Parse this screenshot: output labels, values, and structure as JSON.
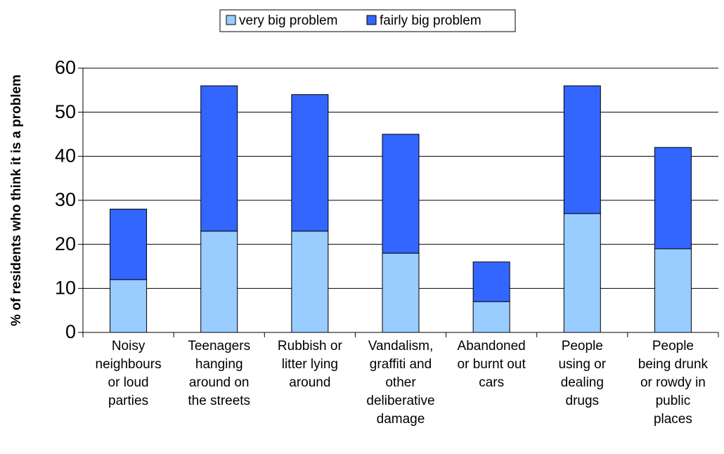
{
  "chart_data": {
    "type": "stacked_bar",
    "y_label": "% of residents who think it is a problem",
    "categories": [
      "Noisy\nneighbours\nor loud\nparties",
      "Teenagers\nhanging\naround on\nthe streets",
      "Rubbish or\nlitter lying\naround",
      "Vandalism,\ngraffiti and\nother\ndeliberative\ndamage",
      "Abandoned\nor burnt out\ncars",
      "People\nusing or\ndealing\ndrugs",
      "People\nbeing drunk\nor rowdy in\npublic\nplaces"
    ],
    "series": [
      {
        "name": "very big problem",
        "color": "#99ccff",
        "values": [
          12,
          23,
          23,
          18,
          7,
          27,
          19
        ]
      },
      {
        "name": "fairly big problem",
        "color": "#3366ff",
        "values": [
          16,
          33,
          31,
          27,
          9,
          29,
          23
        ]
      }
    ],
    "ylim": [
      0,
      60
    ],
    "yticks": [
      0,
      10,
      20,
      30,
      40,
      50,
      60
    ],
    "grid": true
  }
}
